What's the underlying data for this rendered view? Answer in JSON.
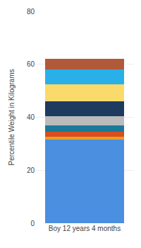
{
  "chart_data": {
    "type": "bar",
    "stacked": true,
    "categories": [
      "Boy 12 years 4 months"
    ],
    "series": [
      {
        "color": "#4A8FE0",
        "values": [
          31.5
        ]
      },
      {
        "color": "#E8A020",
        "values": [
          1.2
        ]
      },
      {
        "color": "#D94E1F",
        "values": [
          1.8
        ]
      },
      {
        "color": "#1A7A9A",
        "values": [
          2.5
        ]
      },
      {
        "color": "#BBBBBB",
        "values": [
          3.5
        ]
      },
      {
        "color": "#1E3A5F",
        "values": [
          5.5
        ]
      },
      {
        "color": "#FADA6A",
        "values": [
          6.5
        ]
      },
      {
        "color": "#29B0E8",
        "values": [
          5.5
        ]
      },
      {
        "color": "#B05A3A",
        "values": [
          4.0
        ]
      }
    ],
    "ylabel": "Percentile Weight in Kilograms",
    "ylim": [
      0,
      80
    ],
    "yticks": [
      0,
      20,
      40,
      60,
      80
    ],
    "grid": true
  }
}
